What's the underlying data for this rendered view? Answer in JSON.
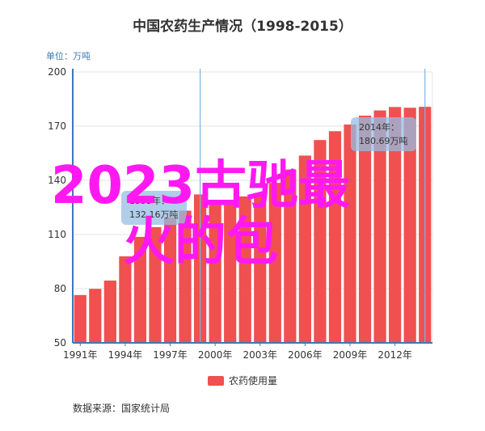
{
  "chart_data": {
    "type": "bar",
    "title": "中国农药生产情况（1998-2015）",
    "ylabel": "单位：万吨",
    "xlabel": "",
    "ylim": [
      50,
      200
    ],
    "yticks": [
      50,
      80,
      110,
      140,
      170,
      200
    ],
    "xticks": [
      "1991年",
      "1994年",
      "1997年",
      "2000年",
      "2003年",
      "2006年",
      "2009年",
      "2012年"
    ],
    "grid": true,
    "legend_position": "bottom",
    "categories": [
      "1991",
      "1992",
      "1993",
      "1994",
      "1995",
      "1996",
      "1997",
      "1998",
      "1999",
      "2000",
      "2001",
      "2002",
      "2003",
      "2004",
      "2005",
      "2006",
      "2007",
      "2008",
      "2009",
      "2010",
      "2011",
      "2012",
      "2013",
      "2014"
    ],
    "series": [
      {
        "name": "农药使用量",
        "color": "#f05050",
        "values": [
          76.5,
          79.9,
          84.5,
          97.9,
          108.7,
          114.1,
          119.5,
          123.2,
          132.2,
          128.0,
          127.5,
          131.1,
          132.5,
          138.6,
          146.0,
          153.7,
          162.3,
          167.2,
          170.9,
          175.8,
          178.7,
          180.6,
          180.2,
          180.7
        ]
      }
    ],
    "tooltips": [
      {
        "year": "1999年：",
        "value": "132.16万吨"
      },
      {
        "year": "2014年：",
        "value": "180.69万吨"
      }
    ],
    "source": "数据来源：国家统计局"
  },
  "overlay": {
    "line1": "2023古驰最",
    "line2": "火的包"
  }
}
